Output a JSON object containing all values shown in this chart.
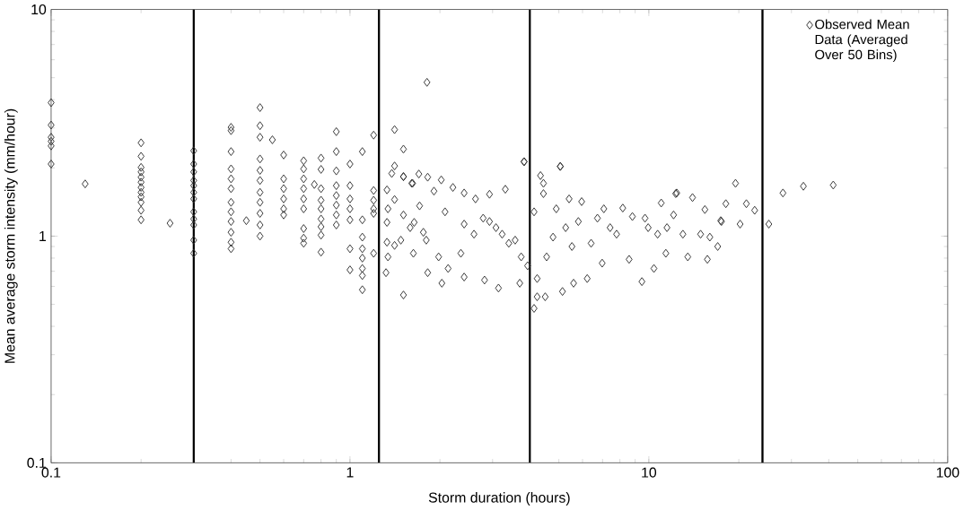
{
  "chart_data": {
    "type": "scatter",
    "xlabel": "Storm duration (hours)",
    "ylabel": "Mean average storm intensity (mm/hour)",
    "log": "xy",
    "grid": false,
    "legend": "top right",
    "marker": "diamond",
    "xlim": [
      0.1,
      100
    ],
    "ylim": [
      0.1,
      10
    ],
    "xticks": [
      0.1,
      1,
      10,
      100
    ],
    "yticks": [
      0.1,
      1,
      10
    ],
    "ref_lines": [
      {
        "axis": "x",
        "value": 0.3,
        "color": "#000000"
      },
      {
        "axis": "x",
        "value": 1.25,
        "color": "#000000"
      },
      {
        "axis": "x",
        "value": 4,
        "color": "#000000"
      },
      {
        "axis": "x",
        "value": 24,
        "color": "#000000"
      }
    ],
    "series": [
      {
        "name": "Observed Mean Data (Averaged Over 50 Bins)",
        "color": "#333333",
        "x": [
          0.1,
          0.1,
          0.1,
          0.1,
          0.1,
          0.1,
          0.13,
          0.2,
          0.2,
          0.2,
          0.2,
          0.2,
          0.2,
          0.2,
          0.2,
          0.2,
          0.2,
          0.2,
          0.2,
          0.25,
          0.3,
          0.3,
          0.3,
          0.3,
          0.3,
          0.3,
          0.3,
          0.3,
          0.3,
          0.3,
          0.3,
          0.3,
          0.4,
          0.4,
          0.4,
          0.4,
          0.4,
          0.4,
          0.4,
          0.4,
          0.4,
          0.4,
          0.4,
          0.4,
          0.45,
          0.5,
          0.5,
          0.5,
          0.5,
          0.5,
          0.5,
          0.5,
          0.5,
          0.5,
          0.5,
          0.5,
          0.55,
          0.6,
          0.6,
          0.6,
          0.6,
          0.6,
          0.6,
          0.7,
          0.7,
          0.7,
          0.7,
          0.7,
          0.7,
          0.7,
          0.7,
          0.7,
          0.76,
          0.8,
          0.8,
          0.8,
          0.8,
          0.8,
          0.8,
          0.8,
          0.8,
          0.8,
          0.9,
          0.9,
          0.9,
          0.9,
          0.9,
          0.9,
          0.9,
          0.9,
          1.0,
          1.0,
          1.0,
          1.0,
          1.0,
          1.0,
          1.0,
          1.1,
          1.1,
          1.1,
          1.1,
          1.1,
          1.1,
          1.1,
          1.1,
          1.2,
          1.2,
          1.2,
          1.2,
          1.2,
          1.2,
          1.33,
          1.41,
          1.51,
          1.62,
          1.33,
          1.33,
          1.41,
          1.64,
          1.76,
          1.81,
          1.41,
          1.51,
          1.41,
          1.38,
          1.51,
          1.61,
          1.7,
          1.82,
          2.02,
          1.91,
          2.21,
          2.41,
          2.63,
          2.93,
          3.31,
          3.82,
          4.34,
          4.44,
          4.44,
          5.05,
          5.41,
          5.96,
          7.07,
          8.18,
          11.0,
          12.3,
          14.0,
          15.4,
          18.1,
          19.5,
          21.2,
          22.6,
          25.2,
          28.1,
          32.9,
          41.4,
          12.4,
          13.5,
          15.7,
          20.2,
          17.4,
          3.83,
          5.06,
          1.51,
          3.14,
          2.03,
          1.82,
          2.41,
          2.82,
          3.7,
          4.13,
          4.23,
          4.5,
          5.14,
          5.6,
          6.22,
          6.98,
          9.48,
          17.0,
          16.0,
          13.0,
          10.7,
          11.4,
          10.4,
          8.59,
          11.5,
          9.71,
          7.8,
          6.41,
          5.53,
          4.78,
          4.55,
          4.23,
          3.93,
          3.74,
          3.4,
          3.08,
          2.79,
          2.6,
          2.35,
          2.13,
          1.98,
          1.8,
          1.63,
          1.59,
          1.48,
          1.34,
          1.32,
          1.34,
          1.51,
          1.71,
          2.08,
          2.41,
          2.93,
          3.23,
          3.57,
          4.13,
          4.9,
          5.27,
          5.81,
          6.73,
          7.42,
          8.81,
          9.95,
          12.1,
          14.9,
          17.5
        ],
        "values": [
          3.88,
          3.09,
          2.73,
          2.62,
          2.5,
          2.08,
          1.7,
          2.58,
          2.25,
          2.01,
          1.92,
          1.82,
          1.73,
          1.64,
          1.56,
          1.49,
          1.41,
          1.3,
          1.18,
          1.14,
          2.38,
          2.08,
          1.92,
          1.76,
          1.67,
          1.56,
          1.46,
          1.28,
          1.19,
          1.12,
          0.96,
          0.84,
          3.02,
          2.92,
          2.36,
          1.98,
          1.79,
          1.62,
          1.41,
          1.28,
          1.16,
          1.04,
          0.94,
          0.88,
          1.17,
          3.69,
          3.07,
          2.73,
          2.19,
          1.95,
          1.76,
          1.56,
          1.41,
          1.26,
          1.12,
          1.0,
          2.66,
          2.28,
          1.79,
          1.62,
          1.46,
          1.32,
          1.24,
          2.15,
          1.98,
          1.79,
          1.62,
          1.46,
          1.32,
          1.08,
          0.98,
          0.93,
          1.69,
          2.21,
          1.97,
          1.62,
          1.44,
          1.32,
          1.19,
          1.1,
          1.01,
          0.85,
          2.89,
          2.36,
          1.94,
          1.67,
          1.51,
          1.37,
          1.24,
          1.12,
          2.08,
          1.67,
          1.46,
          1.32,
          1.18,
          0.88,
          0.71,
          2.36,
          1.18,
          0.99,
          0.88,
          0.8,
          0.72,
          0.67,
          0.58,
          2.79,
          1.59,
          1.44,
          1.32,
          1.26,
          0.84,
          1.6,
          1.45,
          1.83,
          1.71,
          1.15,
          0.94,
          0.91,
          1.15,
          1.04,
          4.77,
          2.95,
          2.42,
          2.04,
          1.89,
          1.83,
          1.71,
          1.88,
          1.82,
          1.77,
          1.58,
          1.64,
          1.55,
          1.46,
          1.53,
          1.61,
          2.13,
          1.85,
          1.71,
          1.54,
          2.03,
          1.46,
          1.42,
          1.32,
          1.33,
          1.4,
          1.54,
          1.48,
          1.31,
          1.39,
          1.71,
          1.39,
          1.3,
          1.13,
          1.55,
          1.66,
          1.68,
          1.55,
          0.81,
          0.79,
          1.13,
          1.17,
          2.13,
          2.03,
          0.55,
          0.59,
          0.62,
          0.69,
          0.66,
          0.64,
          0.62,
          0.48,
          0.54,
          0.54,
          0.57,
          0.62,
          0.65,
          0.76,
          0.63,
          0.9,
          0.99,
          1.02,
          1.02,
          0.84,
          0.72,
          0.79,
          1.09,
          1.2,
          1.02,
          0.93,
          0.9,
          0.99,
          0.81,
          0.65,
          0.74,
          0.81,
          0.93,
          1.09,
          1.2,
          1.02,
          0.84,
          0.72,
          0.81,
          0.96,
          0.84,
          1.09,
          0.96,
          0.81,
          0.69,
          1.32,
          1.24,
          1.36,
          1.28,
          1.13,
          1.16,
          1.02,
          0.96,
          1.28,
          1.32,
          1.09,
          1.16,
          1.2,
          1.09,
          1.22,
          1.09,
          1.24,
          1.02,
          1.16
        ]
      }
    ]
  }
}
